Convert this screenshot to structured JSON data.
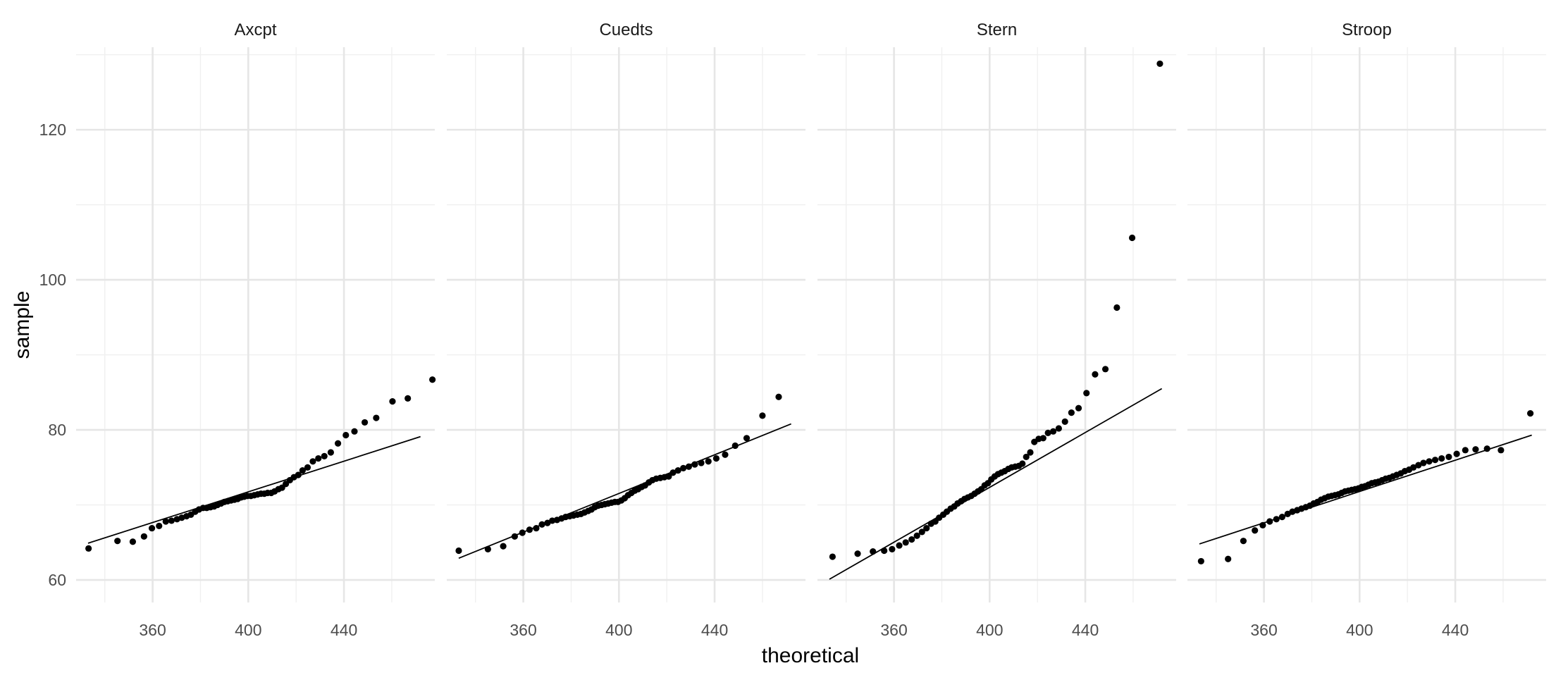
{
  "chart_data": {
    "type": "scatter",
    "subtype": "qq-plot-faceted",
    "xlabel": "theoretical",
    "ylabel": "sample",
    "xlim": [
      328,
      478
    ],
    "ylim": [
      57,
      131
    ],
    "x_ticks": [
      360,
      400,
      440
    ],
    "x_tick_labels": [
      "360",
      "400",
      "440"
    ],
    "y_ticks": [
      60,
      80,
      100,
      120
    ],
    "y_tick_labels": [
      "60",
      "80",
      "100",
      "120"
    ],
    "grid": true,
    "legend": "none",
    "point_color": "#000000",
    "line_color": "#000000",
    "panels": [
      {
        "title": "Axcpt",
        "line": {
          "x": [
            333,
            472
          ],
          "y": [
            64.9,
            79.1
          ]
        },
        "points": [
          [
            333.2,
            64.2
          ],
          [
            345.3,
            65.2
          ],
          [
            351.7,
            65.1
          ],
          [
            356.4,
            65.8
          ],
          [
            359.7,
            66.9
          ],
          [
            362.7,
            67.2
          ],
          [
            365.5,
            67.8
          ],
          [
            367.9,
            67.9
          ],
          [
            370.2,
            68.1
          ],
          [
            372.2,
            68.3
          ],
          [
            374.2,
            68.5
          ],
          [
            376.0,
            68.7
          ],
          [
            377.8,
            69.1
          ],
          [
            379.4,
            69.4
          ],
          [
            381.1,
            69.6
          ],
          [
            382.6,
            69.6
          ],
          [
            384.2,
            69.7
          ],
          [
            385.7,
            69.8
          ],
          [
            387.1,
            70.0
          ],
          [
            388.6,
            70.2
          ],
          [
            390.0,
            70.4
          ],
          [
            391.4,
            70.5
          ],
          [
            392.8,
            70.6
          ],
          [
            394.2,
            70.7
          ],
          [
            395.6,
            70.8
          ],
          [
            397.0,
            71.0
          ],
          [
            398.3,
            71.1
          ],
          [
            399.7,
            71.2
          ],
          [
            401.1,
            71.2
          ],
          [
            402.5,
            71.3
          ],
          [
            403.9,
            71.4
          ],
          [
            405.3,
            71.5
          ],
          [
            406.7,
            71.5
          ],
          [
            408.1,
            71.6
          ],
          [
            409.6,
            71.6
          ],
          [
            411.0,
            71.8
          ],
          [
            412.6,
            72.1
          ],
          [
            414.1,
            72.3
          ],
          [
            415.7,
            72.8
          ],
          [
            417.4,
            73.3
          ],
          [
            419.1,
            73.7
          ],
          [
            420.9,
            74.0
          ],
          [
            422.7,
            74.6
          ],
          [
            424.8,
            75.0
          ],
          [
            427.0,
            75.8
          ],
          [
            429.3,
            76.2
          ],
          [
            431.8,
            76.5
          ],
          [
            434.5,
            77.0
          ],
          [
            437.5,
            78.2
          ],
          [
            440.8,
            79.3
          ],
          [
            444.4,
            79.8
          ],
          [
            448.7,
            81.0
          ],
          [
            453.5,
            81.6
          ],
          [
            460.3,
            83.8
          ],
          [
            466.7,
            84.2
          ],
          [
            477.0,
            86.7
          ]
        ]
      },
      {
        "title": "Cuedts",
        "line": {
          "x": [
            333,
            472
          ],
          "y": [
            62.9,
            80.8
          ]
        },
        "points": [
          [
            333.0,
            63.9
          ],
          [
            345.2,
            64.1
          ],
          [
            351.6,
            64.5
          ],
          [
            356.4,
            65.8
          ],
          [
            359.6,
            66.3
          ],
          [
            362.6,
            66.7
          ],
          [
            365.4,
            66.9
          ],
          [
            367.8,
            67.4
          ],
          [
            370.1,
            67.6
          ],
          [
            372.1,
            67.9
          ],
          [
            374.1,
            68.0
          ],
          [
            376.0,
            68.2
          ],
          [
            377.7,
            68.4
          ],
          [
            379.4,
            68.5
          ],
          [
            381.0,
            68.6
          ],
          [
            382.6,
            68.7
          ],
          [
            384.1,
            68.8
          ],
          [
            385.6,
            69.0
          ],
          [
            387.1,
            69.2
          ],
          [
            388.5,
            69.4
          ],
          [
            389.9,
            69.7
          ],
          [
            391.3,
            69.9
          ],
          [
            392.7,
            70.0
          ],
          [
            394.1,
            70.1
          ],
          [
            395.5,
            70.2
          ],
          [
            396.9,
            70.3
          ],
          [
            398.3,
            70.4
          ],
          [
            399.6,
            70.4
          ],
          [
            401.0,
            70.6
          ],
          [
            402.4,
            70.9
          ],
          [
            403.8,
            71.3
          ],
          [
            405.2,
            71.6
          ],
          [
            406.6,
            71.9
          ],
          [
            408.0,
            72.1
          ],
          [
            409.5,
            72.4
          ],
          [
            410.9,
            72.6
          ],
          [
            412.5,
            73.0
          ],
          [
            414.0,
            73.3
          ],
          [
            415.6,
            73.5
          ],
          [
            417.3,
            73.6
          ],
          [
            419.0,
            73.7
          ],
          [
            420.8,
            73.8
          ],
          [
            422.6,
            74.3
          ],
          [
            424.7,
            74.6
          ],
          [
            426.9,
            74.9
          ],
          [
            429.2,
            75.1
          ],
          [
            431.7,
            75.4
          ],
          [
            434.4,
            75.6
          ],
          [
            437.4,
            75.8
          ],
          [
            440.7,
            76.2
          ],
          [
            444.4,
            76.7
          ],
          [
            448.6,
            77.9
          ],
          [
            453.4,
            78.9
          ],
          [
            460.0,
            81.9
          ],
          [
            466.8,
            84.4
          ]
        ]
      },
      {
        "title": "Stern",
        "line": {
          "x": [
            333,
            472
          ],
          "y": [
            60.1,
            85.5
          ]
        },
        "points": [
          [
            334.3,
            63.1
          ],
          [
            344.8,
            63.5
          ],
          [
            351.2,
            63.8
          ],
          [
            355.9,
            63.9
          ],
          [
            359.2,
            64.1
          ],
          [
            362.2,
            64.6
          ],
          [
            364.9,
            65.0
          ],
          [
            367.4,
            65.4
          ],
          [
            369.6,
            65.9
          ],
          [
            371.7,
            66.4
          ],
          [
            373.6,
            66.9
          ],
          [
            375.5,
            67.5
          ],
          [
            377.3,
            67.8
          ],
          [
            378.9,
            68.3
          ],
          [
            380.6,
            68.7
          ],
          [
            382.1,
            69.1
          ],
          [
            383.7,
            69.5
          ],
          [
            385.2,
            69.8
          ],
          [
            386.6,
            70.2
          ],
          [
            388.1,
            70.5
          ],
          [
            389.5,
            70.8
          ],
          [
            390.9,
            71.0
          ],
          [
            392.3,
            71.2
          ],
          [
            393.7,
            71.5
          ],
          [
            395.1,
            71.8
          ],
          [
            396.5,
            72.1
          ],
          [
            397.9,
            72.6
          ],
          [
            399.3,
            72.9
          ],
          [
            400.7,
            73.4
          ],
          [
            402.1,
            73.8
          ],
          [
            403.5,
            74.1
          ],
          [
            404.9,
            74.3
          ],
          [
            406.3,
            74.5
          ],
          [
            407.8,
            74.8
          ],
          [
            409.2,
            75.0
          ],
          [
            410.7,
            75.1
          ],
          [
            412.2,
            75.2
          ],
          [
            413.7,
            75.5
          ],
          [
            415.3,
            76.4
          ],
          [
            417.0,
            77.0
          ],
          [
            418.7,
            78.4
          ],
          [
            420.5,
            78.8
          ],
          [
            422.4,
            78.9
          ],
          [
            424.4,
            79.6
          ],
          [
            426.6,
            79.8
          ],
          [
            428.9,
            80.2
          ],
          [
            431.5,
            81.1
          ],
          [
            434.2,
            82.3
          ],
          [
            437.2,
            82.9
          ],
          [
            440.5,
            84.9
          ],
          [
            444.1,
            87.4
          ],
          [
            448.4,
            88.1
          ],
          [
            453.2,
            96.3
          ],
          [
            459.6,
            105.6
          ],
          [
            471.2,
            128.8
          ]
        ]
      },
      {
        "title": "Stroop",
        "line": {
          "x": [
            333,
            472
          ],
          "y": [
            64.8,
            79.3
          ]
        },
        "points": [
          [
            333.7,
            62.5
          ],
          [
            345.0,
            62.8
          ],
          [
            351.4,
            65.2
          ],
          [
            356.2,
            66.6
          ],
          [
            359.5,
            67.3
          ],
          [
            362.4,
            67.8
          ],
          [
            365.2,
            68.1
          ],
          [
            367.6,
            68.4
          ],
          [
            369.9,
            68.8
          ],
          [
            371.9,
            69.1
          ],
          [
            373.9,
            69.3
          ],
          [
            375.7,
            69.5
          ],
          [
            377.5,
            69.7
          ],
          [
            379.2,
            69.9
          ],
          [
            380.8,
            70.2
          ],
          [
            382.4,
            70.4
          ],
          [
            383.9,
            70.7
          ],
          [
            385.4,
            70.9
          ],
          [
            386.9,
            71.1
          ],
          [
            388.3,
            71.2
          ],
          [
            389.7,
            71.3
          ],
          [
            391.1,
            71.4
          ],
          [
            392.5,
            71.6
          ],
          [
            393.9,
            71.8
          ],
          [
            395.3,
            71.9
          ],
          [
            396.7,
            72.0
          ],
          [
            398.1,
            72.1
          ],
          [
            399.5,
            72.2
          ],
          [
            400.9,
            72.4
          ],
          [
            402.3,
            72.5
          ],
          [
            403.7,
            72.7
          ],
          [
            405.1,
            72.9
          ],
          [
            406.5,
            73.0
          ],
          [
            407.9,
            73.1
          ],
          [
            409.4,
            73.3
          ],
          [
            410.9,
            73.5
          ],
          [
            412.4,
            73.6
          ],
          [
            413.9,
            73.8
          ],
          [
            415.5,
            74.0
          ],
          [
            417.2,
            74.2
          ],
          [
            418.9,
            74.5
          ],
          [
            420.7,
            74.7
          ],
          [
            422.5,
            75.0
          ],
          [
            424.6,
            75.3
          ],
          [
            426.7,
            75.6
          ],
          [
            429.1,
            75.8
          ],
          [
            431.6,
            76.0
          ],
          [
            434.3,
            76.2
          ],
          [
            437.3,
            76.4
          ],
          [
            440.6,
            76.8
          ],
          [
            444.2,
            77.3
          ],
          [
            448.5,
            77.4
          ],
          [
            453.3,
            77.5
          ],
          [
            459.1,
            77.3
          ],
          [
            471.4,
            82.2
          ]
        ]
      }
    ]
  }
}
